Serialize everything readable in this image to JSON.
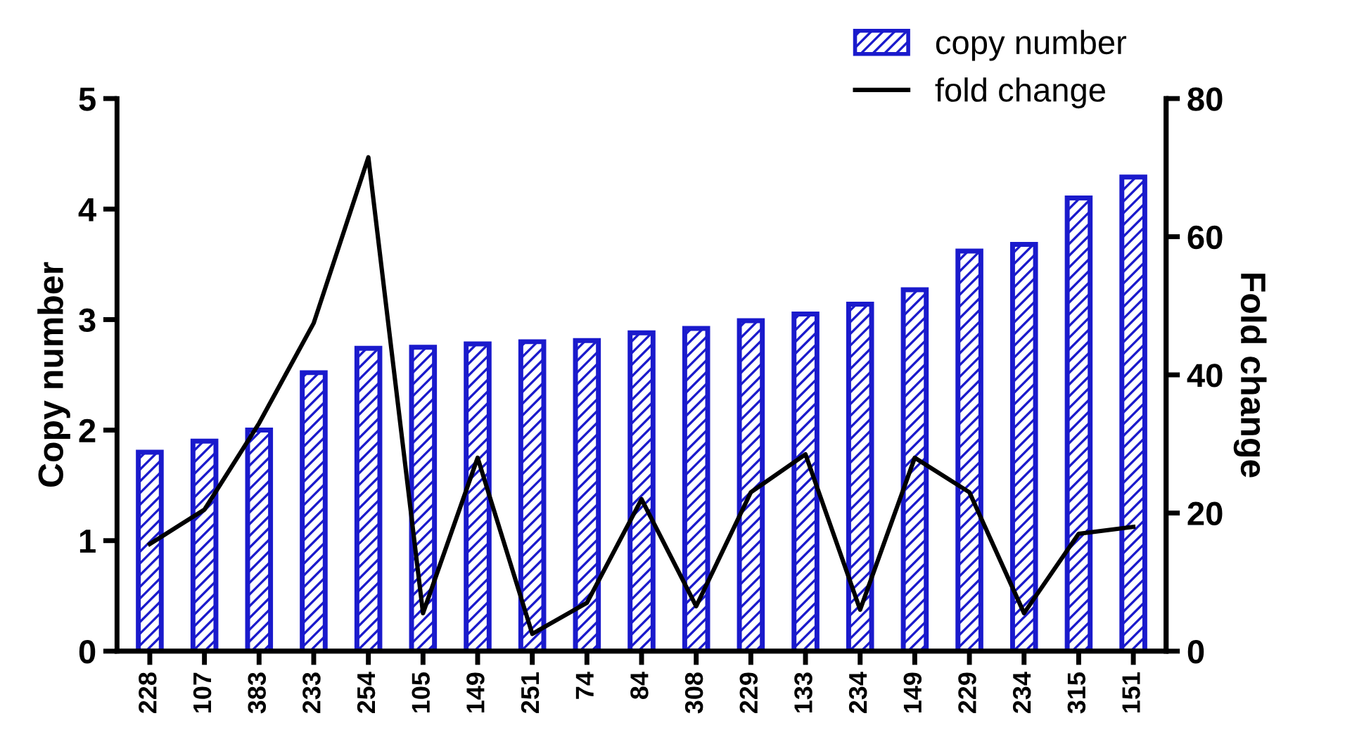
{
  "chart_data": {
    "type": "bar",
    "categories": [
      "228",
      "107",
      "383",
      "233",
      "254",
      "105",
      "149",
      "251",
      "74",
      "84",
      "308",
      "229",
      "133",
      "234",
      "149",
      "229",
      "234",
      "315",
      "151"
    ],
    "series": [
      {
        "name": "copy number",
        "color": "#1a1acc",
        "values": [
          1.8,
          1.9,
          2.0,
          2.52,
          2.74,
          2.75,
          2.78,
          2.8,
          2.81,
          2.88,
          2.92,
          2.99,
          3.05,
          3.14,
          3.27,
          3.62,
          3.68,
          4.1,
          4.29
        ]
      },
      {
        "name": "fold change",
        "type": "line",
        "axis": "y2",
        "color": "#000000",
        "values": [
          15.5,
          20.5,
          33,
          47.5,
          71.5,
          5.5,
          28,
          2.5,
          7,
          22,
          6.5,
          23,
          28.5,
          6,
          28,
          23,
          5.5,
          17,
          18
        ]
      }
    ],
    "ylabel": "Copy number",
    "y2label": "Fold change",
    "ylim": [
      0,
      5
    ],
    "yticks": [
      0,
      1,
      2,
      3,
      4,
      5
    ],
    "y2lim": [
      0,
      80
    ],
    "y2ticks": [
      0,
      20,
      40,
      60,
      80
    ],
    "legend": "top right",
    "grid": false
  }
}
